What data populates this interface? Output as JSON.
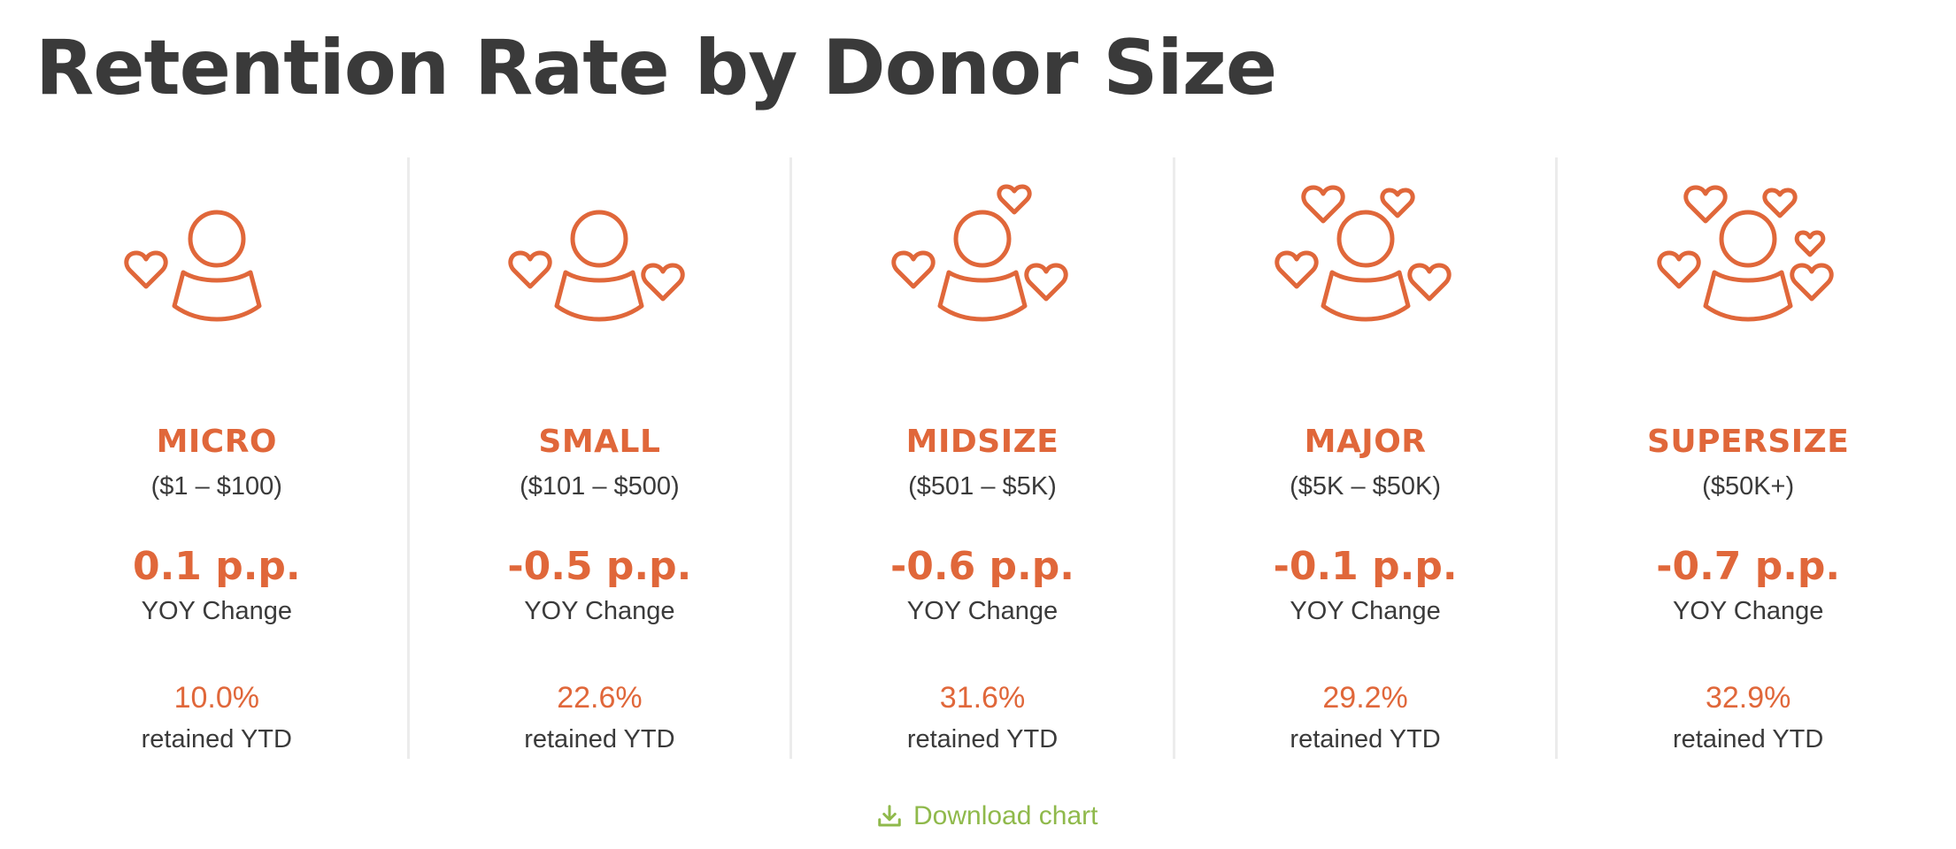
{
  "title": "Retention Rate by Donor Size",
  "accent_color": "#e0673a",
  "link_color": "#8fb94b",
  "segments": [
    {
      "icon": "person-one-heart-icon",
      "name": "MICRO",
      "range": "($1 – $100)",
      "yoy_change": "0.1 p.p.",
      "yoy_label": "YOY Change",
      "retained": "10.0%",
      "retained_label": "retained YTD"
    },
    {
      "icon": "person-two-hearts-icon",
      "name": "SMALL",
      "range": "($101 – $500)",
      "yoy_change": "-0.5 p.p.",
      "yoy_label": "YOY Change",
      "retained": "22.6%",
      "retained_label": "retained YTD"
    },
    {
      "icon": "person-three-hearts-icon",
      "name": "MIDSIZE",
      "range": "($501 – $5K)",
      "yoy_change": "-0.6 p.p.",
      "yoy_label": "YOY Change",
      "retained": "31.6%",
      "retained_label": "retained YTD"
    },
    {
      "icon": "person-four-hearts-icon",
      "name": "MAJOR",
      "range": "($5K – $50K)",
      "yoy_change": "-0.1 p.p.",
      "yoy_label": "YOY Change",
      "retained": "29.2%",
      "retained_label": "retained YTD"
    },
    {
      "icon": "person-five-hearts-icon",
      "name": "SUPERSIZE",
      "range": "($50K+)",
      "yoy_change": "-0.7 p.p.",
      "yoy_label": "YOY Change",
      "retained": "32.9%",
      "retained_label": "retained YTD"
    }
  ],
  "download": {
    "icon": "download-icon",
    "label": "Download chart"
  }
}
